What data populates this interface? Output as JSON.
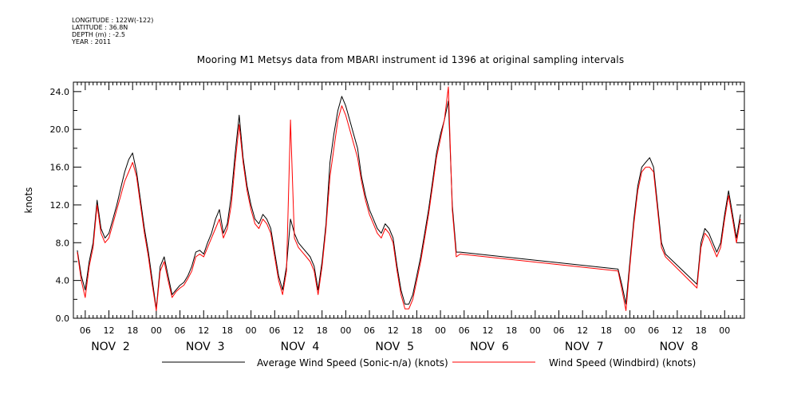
{
  "meta": {
    "longitude": "LONGITUDE : 122W(-122)",
    "latitude": "LATITUDE : 36.8N",
    "depth": "DEPTH (m) : -2.5",
    "year": "YEAR : 2011"
  },
  "chart_data": {
    "type": "line",
    "title": "Mooring M1 Metsys data from MBARI instrument id 1396 at original sampling intervals",
    "ylabel": "knots",
    "xlabel": "",
    "ylim": [
      0,
      25
    ],
    "xlim_hours": [
      -21,
      149
    ],
    "y_ticks": [
      "0.0",
      "4.0",
      "8.0",
      "12.0",
      "16.0",
      "20.0",
      "24.0"
    ],
    "x_hour_tick_labels": [
      "06",
      "12",
      "18",
      "00"
    ],
    "day_labels": [
      {
        "hour": -12,
        "label": "NOV  2"
      },
      {
        "hour": 12,
        "label": "NOV  3"
      },
      {
        "hour": 36,
        "label": "NOV  4"
      },
      {
        "hour": 60,
        "label": "NOV  5"
      },
      {
        "hour": 84,
        "label": "NOV  6"
      },
      {
        "hour": 108,
        "label": "NOV  7"
      },
      {
        "hour": 132,
        "label": "NOV  8"
      }
    ],
    "x_note": "x values are hours relative to 00 on NOV 3",
    "series": [
      {
        "name": "Average Wind Speed (Sonic-n/a) (knots)",
        "color": "#000000",
        "points": [
          [
            -20,
            7.2
          ],
          [
            -19,
            4.5
          ],
          [
            -18,
            3.0
          ],
          [
            -17,
            6.0
          ],
          [
            -16,
            8.0
          ],
          [
            -15,
            12.5
          ],
          [
            -14,
            9.5
          ],
          [
            -13,
            8.5
          ],
          [
            -12,
            9.0
          ],
          [
            -11,
            10.5
          ],
          [
            -10,
            12.0
          ],
          [
            -9,
            13.8
          ],
          [
            -8,
            15.5
          ],
          [
            -7,
            16.8
          ],
          [
            -6,
            17.5
          ],
          [
            -5,
            15.5
          ],
          [
            -4,
            12.5
          ],
          [
            -3,
            9.5
          ],
          [
            -2,
            7.0
          ],
          [
            -1,
            4.0
          ],
          [
            0,
            1.0
          ],
          [
            1,
            5.5
          ],
          [
            2,
            6.5
          ],
          [
            3,
            4.5
          ],
          [
            4,
            2.5
          ],
          [
            5,
            3.0
          ],
          [
            6,
            3.5
          ],
          [
            7,
            3.8
          ],
          [
            8,
            4.5
          ],
          [
            9,
            5.5
          ],
          [
            10,
            7.0
          ],
          [
            11,
            7.2
          ],
          [
            12,
            6.8
          ],
          [
            13,
            8.0
          ],
          [
            14,
            9.0
          ],
          [
            15,
            10.5
          ],
          [
            16,
            11.5
          ],
          [
            17,
            9.0
          ],
          [
            18,
            10.0
          ],
          [
            19,
            13.0
          ],
          [
            20,
            17.5
          ],
          [
            21,
            21.5
          ],
          [
            22,
            17.0
          ],
          [
            23,
            14.0
          ],
          [
            24,
            12.0
          ],
          [
            25,
            10.5
          ],
          [
            26,
            10.0
          ],
          [
            27,
            11.0
          ],
          [
            28,
            10.5
          ],
          [
            29,
            9.5
          ],
          [
            30,
            7.0
          ],
          [
            31,
            4.5
          ],
          [
            32,
            3.0
          ],
          [
            33,
            5.5
          ],
          [
            34,
            10.5
          ],
          [
            35,
            9.0
          ],
          [
            36,
            8.0
          ],
          [
            37,
            7.5
          ],
          [
            38,
            7.0
          ],
          [
            39,
            6.5
          ],
          [
            40,
            5.5
          ],
          [
            41,
            3.0
          ],
          [
            42,
            6.0
          ],
          [
            43,
            10.0
          ],
          [
            44,
            16.5
          ],
          [
            45,
            19.5
          ],
          [
            46,
            22.0
          ],
          [
            47,
            23.5
          ],
          [
            48,
            22.5
          ],
          [
            49,
            21.0
          ],
          [
            50,
            19.5
          ],
          [
            51,
            18.0
          ],
          [
            52,
            15.0
          ],
          [
            53,
            13.0
          ],
          [
            54,
            11.5
          ],
          [
            55,
            10.5
          ],
          [
            56,
            9.5
          ],
          [
            57,
            9.0
          ],
          [
            58,
            10.0
          ],
          [
            59,
            9.5
          ],
          [
            60,
            8.5
          ],
          [
            61,
            5.5
          ],
          [
            62,
            3.0
          ],
          [
            63,
            1.5
          ],
          [
            64,
            1.5
          ],
          [
            65,
            2.5
          ],
          [
            66,
            4.5
          ],
          [
            67,
            6.5
          ],
          [
            68,
            9.0
          ],
          [
            69,
            11.5
          ],
          [
            70,
            14.5
          ],
          [
            71,
            17.5
          ],
          [
            72,
            19.5
          ],
          [
            73,
            21.0
          ],
          [
            74,
            23.0
          ],
          [
            75,
            12.0
          ],
          [
            76,
            7.0
          ],
          [
            77,
            7.0
          ],
          [
            117,
            5.2
          ],
          [
            118,
            3.5
          ],
          [
            119,
            1.5
          ],
          [
            120,
            6.0
          ],
          [
            121,
            10.5
          ],
          [
            122,
            14.0
          ],
          [
            123,
            16.0
          ],
          [
            124,
            16.5
          ],
          [
            125,
            17.0
          ],
          [
            126,
            16.0
          ],
          [
            127,
            12.0
          ],
          [
            128,
            8.0
          ],
          [
            129,
            6.8
          ],
          [
            137,
            3.6
          ],
          [
            138,
            8.0
          ],
          [
            139,
            9.5
          ],
          [
            140,
            9.0
          ],
          [
            141,
            8.0
          ],
          [
            142,
            7.0
          ],
          [
            143,
            8.0
          ],
          [
            144,
            11.0
          ],
          [
            145,
            13.5
          ],
          [
            146,
            11.0
          ],
          [
            147,
            8.5
          ],
          [
            148,
            11.0
          ]
        ]
      },
      {
        "name": "Wind Speed (Windbird) (knots)",
        "color": "#ff0000",
        "points": [
          [
            -20,
            7.0
          ],
          [
            -19,
            4.0
          ],
          [
            -18,
            2.2
          ],
          [
            -17,
            5.5
          ],
          [
            -16,
            7.5
          ],
          [
            -15,
            12.0
          ],
          [
            -14,
            9.0
          ],
          [
            -13,
            8.0
          ],
          [
            -12,
            8.5
          ],
          [
            -11,
            10.0
          ],
          [
            -10,
            11.5
          ],
          [
            -9,
            13.0
          ],
          [
            -8,
            14.5
          ],
          [
            -7,
            15.5
          ],
          [
            -6,
            16.5
          ],
          [
            -5,
            15.0
          ],
          [
            -4,
            12.0
          ],
          [
            -3,
            9.0
          ],
          [
            -2,
            6.5
          ],
          [
            -1,
            3.5
          ],
          [
            0,
            0.8
          ],
          [
            1,
            5.0
          ],
          [
            2,
            6.0
          ],
          [
            3,
            4.0
          ],
          [
            4,
            2.2
          ],
          [
            5,
            2.8
          ],
          [
            6,
            3.2
          ],
          [
            7,
            3.5
          ],
          [
            8,
            4.2
          ],
          [
            9,
            5.0
          ],
          [
            10,
            6.5
          ],
          [
            11,
            6.8
          ],
          [
            12,
            6.5
          ],
          [
            13,
            7.5
          ],
          [
            14,
            8.5
          ],
          [
            15,
            9.5
          ],
          [
            16,
            10.5
          ],
          [
            17,
            8.5
          ],
          [
            18,
            9.5
          ],
          [
            19,
            12.0
          ],
          [
            20,
            16.5
          ],
          [
            21,
            20.5
          ],
          [
            22,
            16.5
          ],
          [
            23,
            13.5
          ],
          [
            24,
            11.5
          ],
          [
            25,
            10.0
          ],
          [
            26,
            9.5
          ],
          [
            27,
            10.5
          ],
          [
            28,
            10.0
          ],
          [
            29,
            9.0
          ],
          [
            30,
            6.5
          ],
          [
            31,
            4.0
          ],
          [
            32,
            2.5
          ],
          [
            33,
            5.0
          ],
          [
            34,
            21.0
          ],
          [
            35,
            8.5
          ],
          [
            36,
            7.5
          ],
          [
            37,
            7.0
          ],
          [
            38,
            6.5
          ],
          [
            39,
            6.0
          ],
          [
            40,
            5.0
          ],
          [
            41,
            2.5
          ],
          [
            42,
            5.5
          ],
          [
            43,
            9.5
          ],
          [
            44,
            15.0
          ],
          [
            45,
            18.0
          ],
          [
            46,
            21.0
          ],
          [
            47,
            22.5
          ],
          [
            48,
            21.5
          ],
          [
            49,
            20.0
          ],
          [
            50,
            18.5
          ],
          [
            51,
            17.0
          ],
          [
            52,
            14.5
          ],
          [
            53,
            12.5
          ],
          [
            54,
            11.0
          ],
          [
            55,
            10.0
          ],
          [
            56,
            9.0
          ],
          [
            57,
            8.5
          ],
          [
            58,
            9.5
          ],
          [
            59,
            9.0
          ],
          [
            60,
            8.0
          ],
          [
            61,
            5.0
          ],
          [
            62,
            2.5
          ],
          [
            63,
            1.0
          ],
          [
            64,
            1.0
          ],
          [
            65,
            2.0
          ],
          [
            66,
            4.0
          ],
          [
            67,
            6.0
          ],
          [
            68,
            8.5
          ],
          [
            69,
            11.0
          ],
          [
            70,
            14.0
          ],
          [
            71,
            17.0
          ],
          [
            72,
            19.0
          ],
          [
            73,
            21.0
          ],
          [
            74,
            24.5
          ],
          [
            75,
            11.5
          ],
          [
            76,
            6.5
          ],
          [
            77,
            6.8
          ],
          [
            117,
            5.0
          ],
          [
            118,
            3.0
          ],
          [
            119,
            0.8
          ],
          [
            120,
            5.5
          ],
          [
            121,
            10.0
          ],
          [
            122,
            13.5
          ],
          [
            123,
            15.5
          ],
          [
            124,
            16.0
          ],
          [
            125,
            16.0
          ],
          [
            126,
            15.5
          ],
          [
            127,
            11.5
          ],
          [
            128,
            7.5
          ],
          [
            129,
            6.5
          ],
          [
            137,
            3.2
          ],
          [
            138,
            7.5
          ],
          [
            139,
            9.0
          ],
          [
            140,
            8.5
          ],
          [
            141,
            7.5
          ],
          [
            142,
            6.5
          ],
          [
            143,
            7.5
          ],
          [
            144,
            10.5
          ],
          [
            145,
            13.0
          ],
          [
            146,
            10.5
          ],
          [
            147,
            8.0
          ],
          [
            148,
            10.5
          ]
        ]
      }
    ],
    "legend": [
      {
        "label": "Average Wind Speed (Sonic-n/a) (knots)",
        "color": "#000000"
      },
      {
        "label": "Wind Speed (Windbird) (knots)",
        "color": "#ff0000"
      }
    ],
    "legend_placement": "bottom",
    "grid": false
  }
}
